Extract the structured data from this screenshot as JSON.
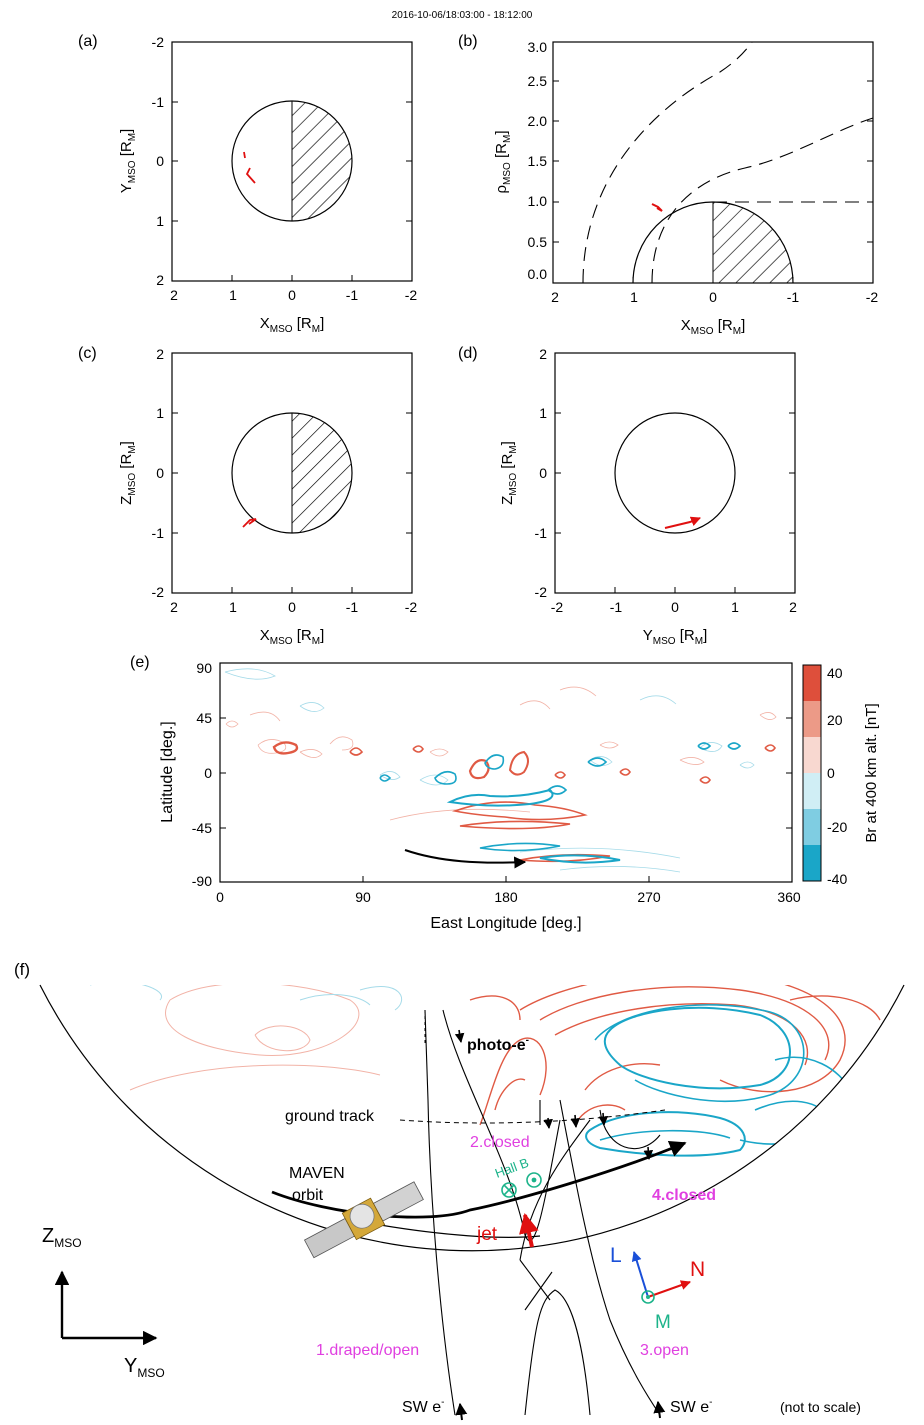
{
  "timestamp": "2016-10-06/18:03:00 - 18:12:00",
  "panels": {
    "a": {
      "label": "(a)",
      "xlabel": "X",
      "xsub": "MSO",
      "xunit": " [R",
      "xunitsub": "M",
      "ylabel": "Y",
      "ysub": "MSO",
      "yunit": " [R",
      "yunitsub": "M",
      "xticks": [
        "2",
        "1",
        "0",
        "-1",
        "-2"
      ],
      "yticks": [
        "-2",
        "-1",
        "0",
        "1",
        "2"
      ]
    },
    "b": {
      "label": "(b)",
      "xlabel": "X",
      "xsub": "MSO",
      "xunit": " [R",
      "xunitsub": "M",
      "ylabel": "ρ",
      "ysub": "MSO",
      "yunit": " [R",
      "yunitsub": "M",
      "xticks": [
        "2",
        "1",
        "0",
        "-1",
        "-2"
      ],
      "yticks": [
        "0.0",
        "0.5",
        "1.0",
        "1.5",
        "2.0",
        "2.5",
        "3.0"
      ]
    },
    "c": {
      "label": "(c)",
      "xlabel": "X",
      "xsub": "MSO",
      "xunit": " [R",
      "xunitsub": "M",
      "ylabel": "Z",
      "ysub": "MSO",
      "yunit": " [R",
      "yunitsub": "M",
      "xticks": [
        "2",
        "1",
        "0",
        "-1",
        "-2"
      ],
      "yticks": [
        "2",
        "1",
        "0",
        "-1",
        "-2"
      ]
    },
    "d": {
      "label": "(d)",
      "xlabel": "Y",
      "xsub": "MSO",
      "xunit": " [R",
      "xunitsub": "M",
      "ylabel": "Z",
      "ysub": "MSO",
      "yunit": " [R",
      "yunitsub": "M",
      "xticks": [
        "-2",
        "-1",
        "0",
        "1",
        "2"
      ],
      "yticks": [
        "2",
        "1",
        "0",
        "-1",
        "-2"
      ]
    },
    "e": {
      "label": "(e)",
      "xlabel": "East Longitude [deg.]",
      "ylabel": "Latitude [deg.]",
      "xticks": [
        "0",
        "90",
        "180",
        "270",
        "360"
      ],
      "yticks": [
        "90",
        "45",
        "0",
        "-45",
        "-90"
      ],
      "colorbar_label": "Br at 400 km alt. [nT]",
      "colorbar_ticks": [
        "40",
        "20",
        "0",
        "-20",
        "-40"
      ],
      "colorbar_colors": {
        "pos": "#e0604a",
        "neg": "#1aa6c8"
      }
    },
    "f": {
      "label": "(f)",
      "photo": "photo-e",
      "ground_track": "ground track",
      "maven": "MAVEN",
      "orbit": "orbit",
      "closed2": "2.closed",
      "closed4": "4.closed",
      "hall": "Hall B",
      "jet": "jet",
      "draped": "1.draped/open",
      "open3": "3.open",
      "sw": "SW e",
      "not_to_scale": "(not to scale)",
      "axis_z": "Z",
      "axis_y": "Y",
      "axis_sub": "MSO",
      "L": "L",
      "N": "N",
      "M": "M",
      "colors": {
        "magenta": "#e040e0",
        "green": "#1cb38a",
        "red": "#e01010",
        "blue": "#1a4fd8"
      }
    }
  }
}
